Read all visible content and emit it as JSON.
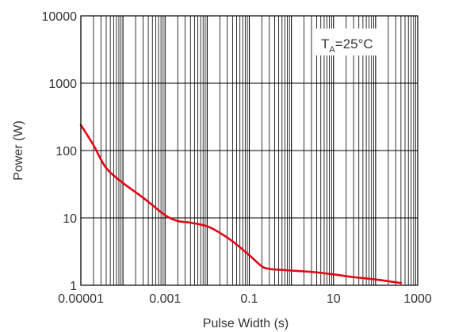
{
  "chart_data": {
    "type": "line",
    "title": "",
    "xlabel": "Pulse Width (s)",
    "ylabel": "Power (W)",
    "xscale": "log",
    "yscale": "log",
    "xlim": [
      1e-05,
      1000
    ],
    "ylim": [
      1,
      10000
    ],
    "grid": true,
    "x_ticks": [
      {
        "value": 1e-05,
        "label": "0.00001"
      },
      {
        "value": 0.001,
        "label": "0.001"
      },
      {
        "value": 0.1,
        "label": "0.1"
      },
      {
        "value": 10,
        "label": "10"
      },
      {
        "value": 1000,
        "label": "1000"
      }
    ],
    "y_ticks": [
      {
        "value": 1,
        "label": "1"
      },
      {
        "value": 10,
        "label": "10"
      },
      {
        "value": 100,
        "label": "100"
      },
      {
        "value": 1000,
        "label": "1000"
      },
      {
        "value": 10000,
        "label": "10000"
      }
    ],
    "annotation": {
      "main": "T",
      "sub": "A",
      "rest": "=25°C"
    },
    "series": [
      {
        "color": "#e30613",
        "x": [
          1e-05,
          2e-05,
          4e-05,
          0.0001,
          0.0003,
          0.001,
          0.002,
          0.004,
          0.01,
          0.02,
          0.04,
          0.1,
          0.2,
          0.3,
          0.5,
          1,
          3,
          10,
          30,
          100,
          400
        ],
        "y": [
          240,
          120,
          55,
          33,
          20,
          11,
          9,
          8.5,
          7.5,
          6,
          4.5,
          2.8,
          1.9,
          1.75,
          1.7,
          1.65,
          1.58,
          1.45,
          1.32,
          1.22,
          1.08
        ]
      }
    ]
  }
}
